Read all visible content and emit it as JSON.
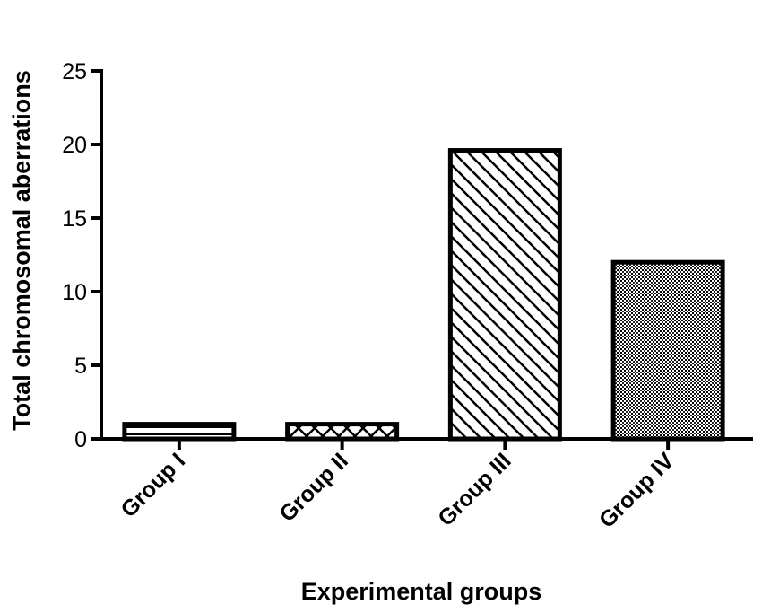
{
  "chart_data": {
    "type": "bar",
    "title": "",
    "xlabel": "Experimental groups",
    "ylabel": "Total chromosomal aberrations",
    "categories": [
      "Group I",
      "Group II",
      "Group III",
      "Group IV"
    ],
    "values": [
      1,
      1,
      19.6,
      12
    ],
    "patterns": [
      "horizontal-lines",
      "cross-hatch",
      "diagonal-hatch",
      "dots"
    ],
    "ylim": [
      0,
      25
    ],
    "yticks": [
      0,
      5,
      10,
      15,
      20,
      25
    ],
    "grid": false,
    "legend": "none"
  }
}
